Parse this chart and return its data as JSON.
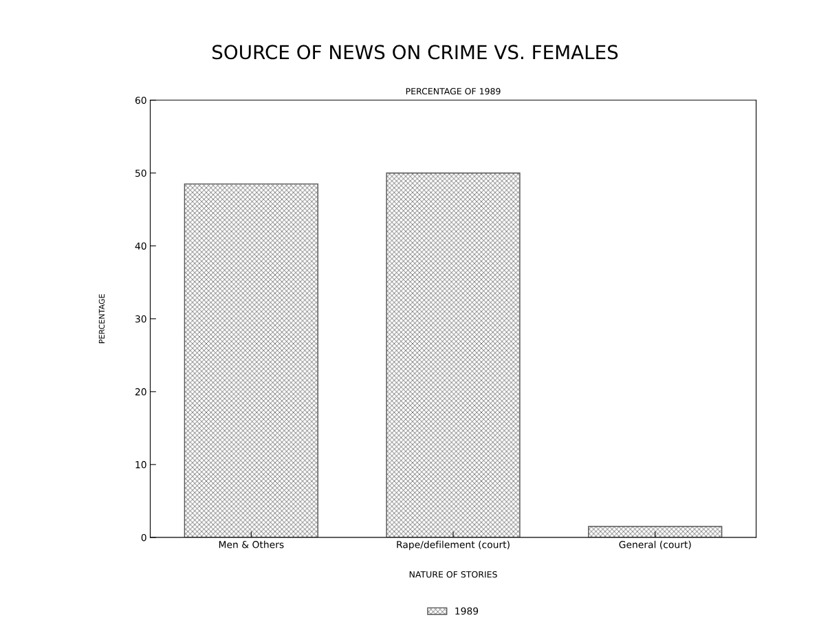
{
  "chart_data": {
    "type": "bar",
    "title": "SOURCE OF NEWS ON CRIME VS. FEMALES",
    "subtitle": "PERCENTAGE OF 1989",
    "xlabel": "NATURE OF STORIES",
    "ylabel": "PERCENTAGE",
    "categories": [
      "Men & Others",
      "Rape/defilement (court)",
      "General (court)"
    ],
    "series": [
      {
        "name": "1989",
        "color": "#555555",
        "values": [
          48.5,
          50,
          1.5
        ]
      }
    ],
    "ylim": [
      0,
      60
    ],
    "yticks": [
      0,
      10,
      20,
      30,
      40,
      50,
      60
    ],
    "grid": false,
    "legend": "bottom"
  }
}
